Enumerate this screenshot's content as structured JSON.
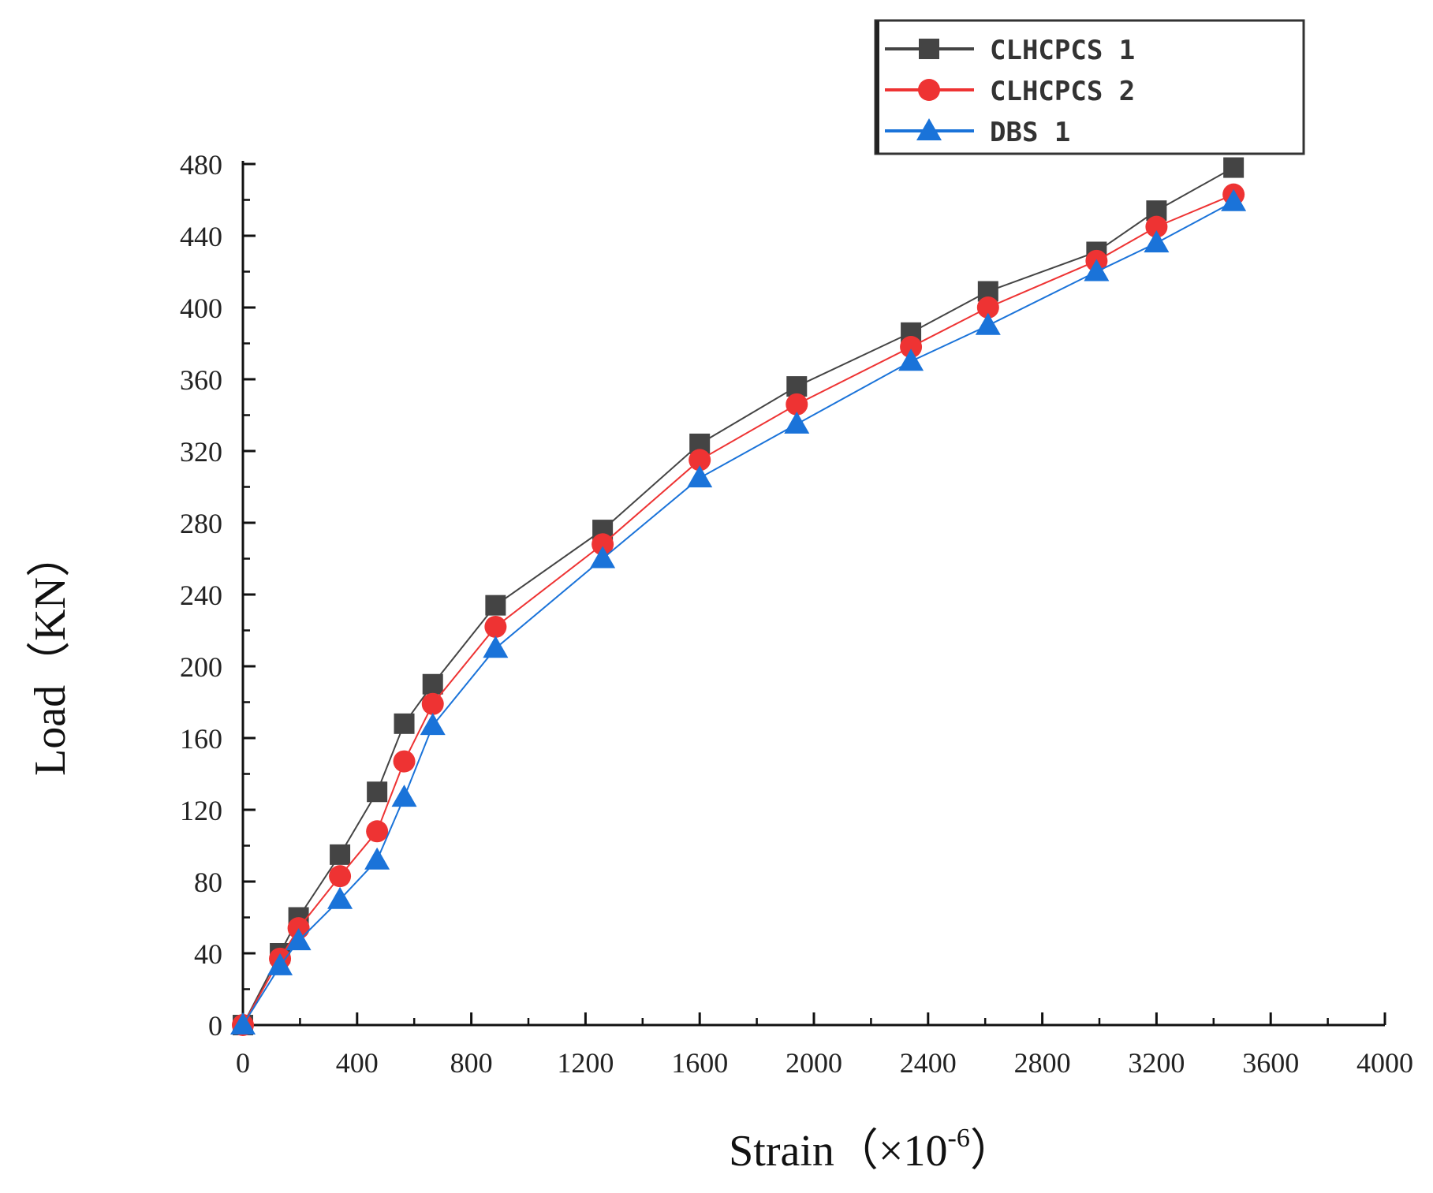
{
  "chart_data": {
    "type": "line",
    "title": "",
    "xlabel": "Strain（×10",
    "xlabel_exp": "-6",
    "xlabel_close": "）",
    "ylabel": "Load（KN）",
    "xlim": [
      0,
      4000
    ],
    "ylim": [
      0,
      480
    ],
    "xticks": [
      "0",
      "400",
      "800",
      "1200",
      "1600",
      "2000",
      "2400",
      "2800",
      "3200",
      "3600",
      "4000"
    ],
    "yticks": [
      "0",
      "40",
      "80",
      "120",
      "160",
      "200",
      "240",
      "280",
      "320",
      "360",
      "400",
      "440",
      "480"
    ],
    "grid": false,
    "legend_position": "top-right",
    "series": [
      {
        "name": "CLHCPCS 1",
        "color": "#444444",
        "marker": "square",
        "x": [
          0,
          130,
          195,
          340,
          470,
          565,
          665,
          885,
          1260,
          1600,
          1940,
          2340,
          2610,
          2990,
          3200,
          3470
        ],
        "y": [
          0,
          40,
          60,
          95,
          130,
          168,
          190,
          234,
          276,
          324,
          356,
          386,
          409,
          431,
          454,
          478
        ]
      },
      {
        "name": "CLHCPCS 2",
        "color": "#ee3333",
        "marker": "circle",
        "x": [
          0,
          130,
          195,
          340,
          470,
          565,
          665,
          885,
          1260,
          1600,
          1940,
          2340,
          2610,
          2990,
          3200,
          3470
        ],
        "y": [
          0,
          37,
          54,
          83,
          108,
          147,
          179,
          222,
          268,
          315,
          346,
          378,
          400,
          426,
          445,
          463
        ]
      },
      {
        "name": "DBS 1",
        "color": "#1a73d9",
        "marker": "triangle",
        "x": [
          0,
          130,
          195,
          340,
          470,
          565,
          665,
          885,
          1260,
          1600,
          1940,
          2340,
          2610,
          2990,
          3200,
          3470
        ],
        "y": [
          0,
          33,
          47,
          70,
          92,
          127,
          167,
          210,
          260,
          305,
          335,
          370,
          390,
          420,
          436,
          459
        ]
      }
    ]
  }
}
